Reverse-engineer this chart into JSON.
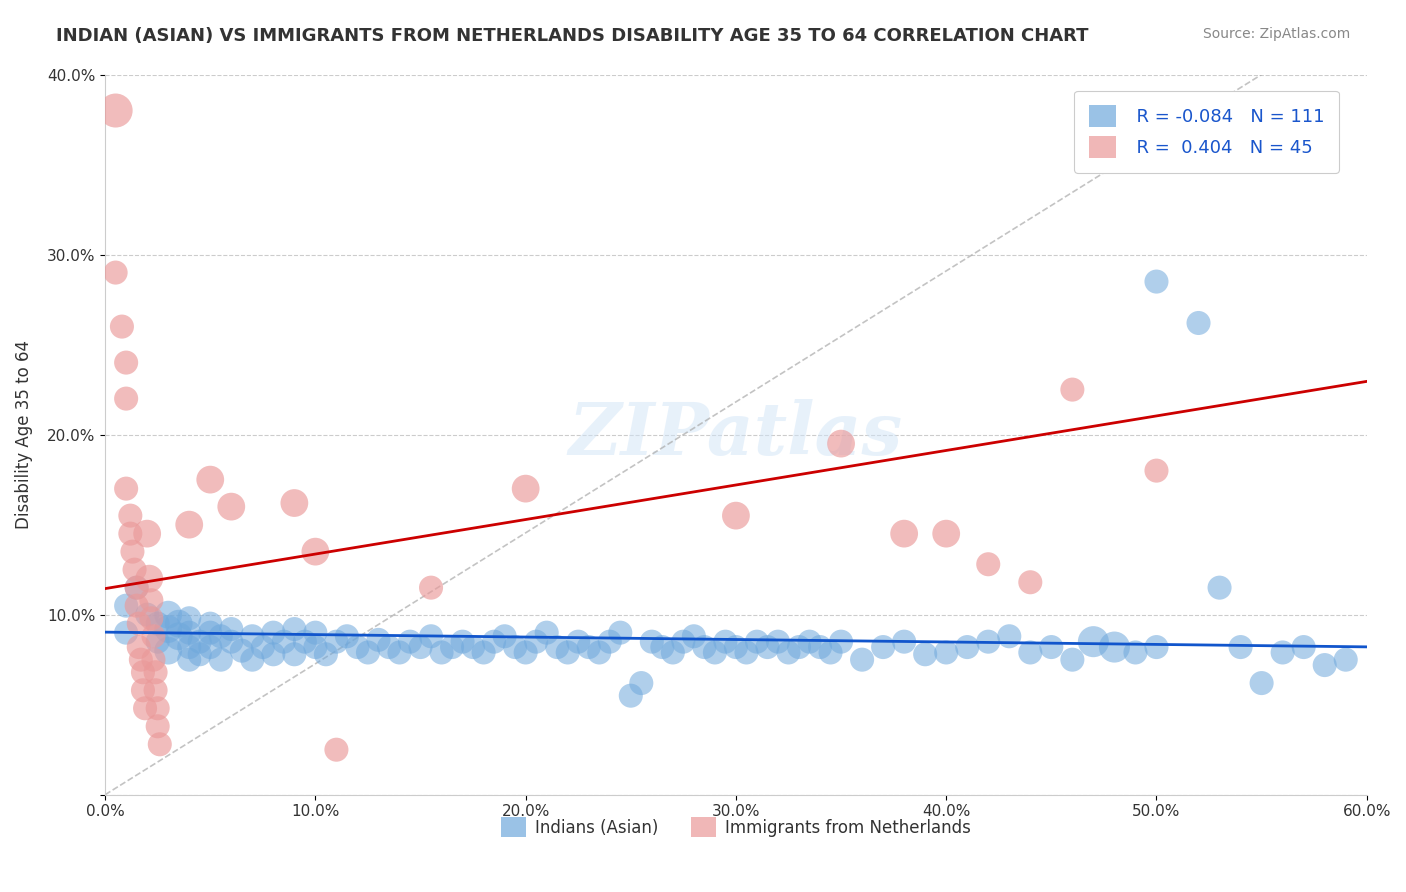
{
  "title": "INDIAN (ASIAN) VS IMMIGRANTS FROM NETHERLANDS DISABILITY AGE 35 TO 64 CORRELATION CHART",
  "source": "Source: ZipAtlas.com",
  "xlabel": "",
  "ylabel": "Disability Age 35 to 64",
  "xlim": [
    0.0,
    0.6
  ],
  "ylim": [
    0.0,
    0.4
  ],
  "xticks": [
    0.0,
    0.1,
    0.2,
    0.3,
    0.4,
    0.5,
    0.6
  ],
  "yticks": [
    0.0,
    0.1,
    0.2,
    0.3,
    0.4
  ],
  "xticklabels": [
    "0.0%",
    "10.0%",
    "20.0%",
    "30.0%",
    "40.0%",
    "50.0%",
    "60.0%"
  ],
  "yticklabels": [
    "",
    "10.0%",
    "20.0%",
    "30.0%",
    "40.0%"
  ],
  "legend_labels": [
    "Indians (Asian)",
    "Immigrants from Netherlands"
  ],
  "r_blue": -0.084,
  "n_blue": 111,
  "r_pink": 0.404,
  "n_pink": 45,
  "blue_color": "#6fa8dc",
  "pink_color": "#ea9999",
  "trend_blue": "#1155cc",
  "trend_pink": "#cc0000",
  "watermark": "ZIPatlas",
  "blue_dots": [
    [
      0.01,
      0.105
    ],
    [
      0.01,
      0.09
    ],
    [
      0.015,
      0.115
    ],
    [
      0.02,
      0.1
    ],
    [
      0.025,
      0.085
    ],
    [
      0.025,
      0.095
    ],
    [
      0.03,
      0.08
    ],
    [
      0.03,
      0.092
    ],
    [
      0.03,
      0.1
    ],
    [
      0.035,
      0.088
    ],
    [
      0.035,
      0.095
    ],
    [
      0.04,
      0.075
    ],
    [
      0.04,
      0.082
    ],
    [
      0.04,
      0.09
    ],
    [
      0.04,
      0.098
    ],
    [
      0.045,
      0.085
    ],
    [
      0.045,
      0.078
    ],
    [
      0.05,
      0.09
    ],
    [
      0.05,
      0.082
    ],
    [
      0.05,
      0.095
    ],
    [
      0.055,
      0.088
    ],
    [
      0.055,
      0.075
    ],
    [
      0.06,
      0.085
    ],
    [
      0.06,
      0.092
    ],
    [
      0.065,
      0.08
    ],
    [
      0.07,
      0.088
    ],
    [
      0.07,
      0.075
    ],
    [
      0.075,
      0.082
    ],
    [
      0.08,
      0.09
    ],
    [
      0.08,
      0.078
    ],
    [
      0.085,
      0.085
    ],
    [
      0.09,
      0.092
    ],
    [
      0.09,
      0.078
    ],
    [
      0.095,
      0.085
    ],
    [
      0.1,
      0.082
    ],
    [
      0.1,
      0.09
    ],
    [
      0.105,
      0.078
    ],
    [
      0.11,
      0.085
    ],
    [
      0.115,
      0.088
    ],
    [
      0.12,
      0.082
    ],
    [
      0.125,
      0.079
    ],
    [
      0.13,
      0.086
    ],
    [
      0.135,
      0.082
    ],
    [
      0.14,
      0.079
    ],
    [
      0.145,
      0.085
    ],
    [
      0.15,
      0.082
    ],
    [
      0.155,
      0.088
    ],
    [
      0.16,
      0.079
    ],
    [
      0.165,
      0.082
    ],
    [
      0.17,
      0.085
    ],
    [
      0.175,
      0.082
    ],
    [
      0.18,
      0.079
    ],
    [
      0.185,
      0.085
    ],
    [
      0.19,
      0.088
    ],
    [
      0.195,
      0.082
    ],
    [
      0.2,
      0.079
    ],
    [
      0.205,
      0.085
    ],
    [
      0.21,
      0.09
    ],
    [
      0.215,
      0.082
    ],
    [
      0.22,
      0.079
    ],
    [
      0.225,
      0.085
    ],
    [
      0.23,
      0.082
    ],
    [
      0.235,
      0.079
    ],
    [
      0.24,
      0.085
    ],
    [
      0.245,
      0.09
    ],
    [
      0.25,
      0.055
    ],
    [
      0.255,
      0.062
    ],
    [
      0.26,
      0.085
    ],
    [
      0.265,
      0.082
    ],
    [
      0.27,
      0.079
    ],
    [
      0.275,
      0.085
    ],
    [
      0.28,
      0.088
    ],
    [
      0.285,
      0.082
    ],
    [
      0.29,
      0.079
    ],
    [
      0.295,
      0.085
    ],
    [
      0.3,
      0.082
    ],
    [
      0.305,
      0.079
    ],
    [
      0.31,
      0.085
    ],
    [
      0.315,
      0.082
    ],
    [
      0.32,
      0.085
    ],
    [
      0.325,
      0.079
    ],
    [
      0.33,
      0.082
    ],
    [
      0.335,
      0.085
    ],
    [
      0.34,
      0.082
    ],
    [
      0.345,
      0.079
    ],
    [
      0.35,
      0.085
    ],
    [
      0.36,
      0.075
    ],
    [
      0.37,
      0.082
    ],
    [
      0.38,
      0.085
    ],
    [
      0.39,
      0.078
    ],
    [
      0.4,
      0.079
    ],
    [
      0.41,
      0.082
    ],
    [
      0.42,
      0.085
    ],
    [
      0.43,
      0.088
    ],
    [
      0.44,
      0.079
    ],
    [
      0.45,
      0.082
    ],
    [
      0.46,
      0.075
    ],
    [
      0.47,
      0.085
    ],
    [
      0.48,
      0.082
    ],
    [
      0.49,
      0.079
    ],
    [
      0.5,
      0.082
    ],
    [
      0.5,
      0.285
    ],
    [
      0.52,
      0.262
    ],
    [
      0.53,
      0.115
    ],
    [
      0.54,
      0.082
    ],
    [
      0.55,
      0.062
    ],
    [
      0.56,
      0.079
    ],
    [
      0.57,
      0.082
    ],
    [
      0.58,
      0.072
    ],
    [
      0.59,
      0.075
    ]
  ],
  "blue_sizes": [
    15,
    15,
    15,
    15,
    15,
    15,
    20,
    20,
    20,
    20,
    20,
    15,
    15,
    15,
    15,
    15,
    15,
    15,
    15,
    15,
    15,
    15,
    15,
    15,
    15,
    15,
    15,
    15,
    15,
    15,
    15,
    15,
    15,
    15,
    15,
    15,
    15,
    15,
    15,
    15,
    15,
    15,
    15,
    15,
    15,
    15,
    15,
    15,
    15,
    15,
    15,
    15,
    15,
    15,
    15,
    15,
    15,
    15,
    15,
    15,
    15,
    15,
    15,
    15,
    15,
    15,
    15,
    15,
    15,
    15,
    15,
    15,
    15,
    15,
    15,
    15,
    15,
    15,
    15,
    15,
    15,
    15,
    15,
    15,
    15,
    15,
    15,
    15,
    15,
    15,
    15,
    15,
    15,
    15,
    15,
    15,
    15,
    25,
    25,
    15,
    15,
    15,
    15,
    15,
    15,
    15,
    15,
    15,
    15,
    15
  ],
  "pink_dots": [
    [
      0.005,
      0.38
    ],
    [
      0.005,
      0.29
    ],
    [
      0.008,
      0.26
    ],
    [
      0.01,
      0.24
    ],
    [
      0.01,
      0.22
    ],
    [
      0.01,
      0.17
    ],
    [
      0.012,
      0.155
    ],
    [
      0.012,
      0.145
    ],
    [
      0.013,
      0.135
    ],
    [
      0.014,
      0.125
    ],
    [
      0.015,
      0.115
    ],
    [
      0.015,
      0.105
    ],
    [
      0.016,
      0.095
    ],
    [
      0.016,
      0.082
    ],
    [
      0.017,
      0.075
    ],
    [
      0.018,
      0.068
    ],
    [
      0.018,
      0.058
    ],
    [
      0.019,
      0.048
    ],
    [
      0.02,
      0.145
    ],
    [
      0.021,
      0.12
    ],
    [
      0.022,
      0.108
    ],
    [
      0.022,
      0.098
    ],
    [
      0.023,
      0.088
    ],
    [
      0.023,
      0.075
    ],
    [
      0.024,
      0.068
    ],
    [
      0.024,
      0.058
    ],
    [
      0.025,
      0.048
    ],
    [
      0.025,
      0.038
    ],
    [
      0.026,
      0.028
    ],
    [
      0.04,
      0.15
    ],
    [
      0.05,
      0.175
    ],
    [
      0.06,
      0.16
    ],
    [
      0.09,
      0.162
    ],
    [
      0.1,
      0.135
    ],
    [
      0.11,
      0.025
    ],
    [
      0.155,
      0.115
    ],
    [
      0.2,
      0.17
    ],
    [
      0.3,
      0.155
    ],
    [
      0.35,
      0.195
    ],
    [
      0.38,
      0.145
    ],
    [
      0.4,
      0.145
    ],
    [
      0.42,
      0.128
    ],
    [
      0.44,
      0.118
    ],
    [
      0.46,
      0.225
    ],
    [
      0.5,
      0.18
    ]
  ],
  "pink_sizes": [
    30,
    15,
    15,
    15,
    15,
    15,
    15,
    15,
    15,
    15,
    15,
    15,
    15,
    15,
    15,
    15,
    15,
    15,
    20,
    20,
    15,
    15,
    15,
    15,
    15,
    15,
    15,
    15,
    15,
    20,
    20,
    20,
    20,
    20,
    15,
    15,
    20,
    20,
    20,
    20,
    20,
    15,
    15,
    15,
    15
  ]
}
